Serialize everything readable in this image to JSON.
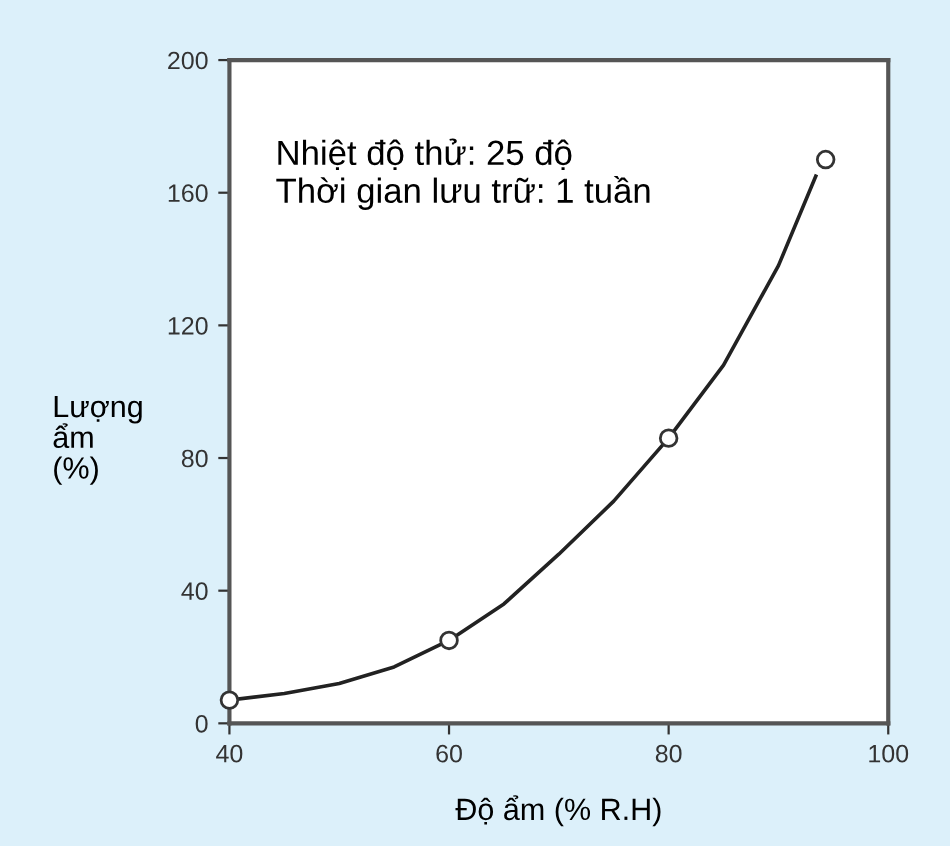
{
  "chart_data": {
    "type": "scatter",
    "xlabel": "Độ ẩm (% R.H)",
    "ylabel": "Lượng\nẩm\n(%)",
    "annotations": [
      "Nhiệt độ thử: 25 độ",
      "Thời gian lưu trữ: 1 tuần"
    ],
    "series": [
      {
        "type": "line",
        "marker": "none",
        "color": "#222222",
        "x": [
          40,
          45,
          50,
          55,
          60,
          65,
          70,
          75,
          80,
          85,
          90,
          93.4
        ],
        "values": [
          7,
          9,
          12,
          17,
          25,
          36,
          51,
          67,
          86,
          108,
          138,
          165
        ]
      },
      {
        "marker": "circle",
        "color": "#333333",
        "x": [
          40,
          60,
          80,
          94.3
        ],
        "values": [
          7,
          25,
          86,
          170
        ]
      }
    ],
    "xlim": [
      40,
      100
    ],
    "xticks": [
      40,
      60,
      80,
      100
    ],
    "ylim": [
      0,
      200
    ],
    "yticks": [
      0,
      40,
      80,
      120,
      160,
      200
    ],
    "grid": false
  }
}
